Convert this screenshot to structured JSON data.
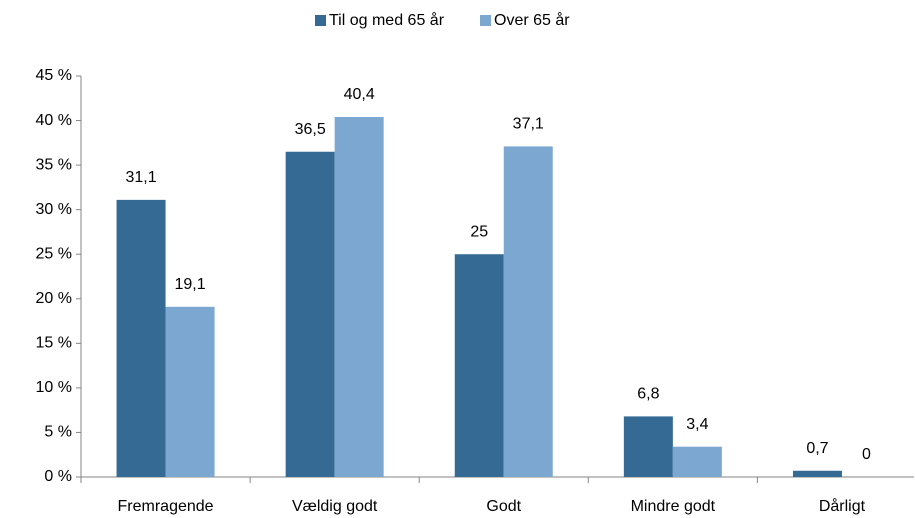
{
  "chart_data": {
    "type": "bar",
    "categories": [
      "Fremragende",
      "Vældig godt",
      "Godt",
      "Mindre godt",
      "Dårligt"
    ],
    "series": [
      {
        "name": "Til og med 65 år",
        "color": "#346a94",
        "values": [
          31.1,
          36.5,
          25,
          6.8,
          0.7
        ],
        "value_labels": [
          "31,1",
          "36,5",
          "25",
          "6,8",
          "0,7"
        ]
      },
      {
        "name": "Over 65 år",
        "color": "#7ba7d1",
        "values": [
          19.1,
          40.4,
          37.1,
          3.4,
          0
        ],
        "value_labels": [
          "19,1",
          "40,4",
          "37,1",
          "3,4",
          "0"
        ]
      }
    ],
    "ylim": [
      0,
      45
    ],
    "yticks": [
      {
        "value": 0,
        "label": "0 %"
      },
      {
        "value": 5,
        "label": "5 %"
      },
      {
        "value": 10,
        "label": "10 %"
      },
      {
        "value": 15,
        "label": "15 %"
      },
      {
        "value": 20,
        "label": "20 %"
      },
      {
        "value": 25,
        "label": "25 %"
      },
      {
        "value": 30,
        "label": "30 %"
      },
      {
        "value": 35,
        "label": "35 %"
      },
      {
        "value": 40,
        "label": "40 %"
      },
      {
        "value": 45,
        "label": "45 %"
      }
    ],
    "legend": "top",
    "grid": false
  }
}
